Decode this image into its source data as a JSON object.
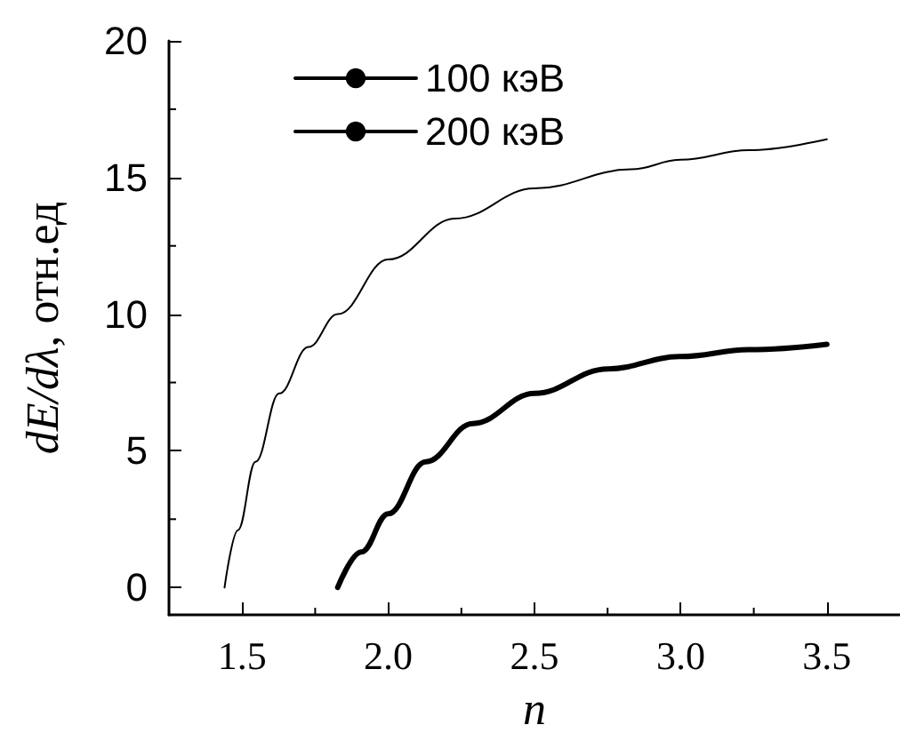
{
  "chart_data": {
    "type": "line",
    "xlabel": "n",
    "ylabel": "dE/dλ, отн.ед",
    "xlim": [
      1.25,
      3.75
    ],
    "xticks": [
      1.5,
      {
        "value": 2,
        "label": "2.0"
      },
      2.5,
      {
        "value": 3,
        "label": "3.0"
      },
      3.5
    ],
    "ylim": [
      -1,
      20
    ],
    "yticks": [
      0,
      5,
      10,
      15,
      20
    ],
    "grid": false,
    "legend": "top left",
    "marker": "none",
    "line_style": "solid",
    "series": [
      {
        "name": "100 кэВ",
        "color": "#000000",
        "x": [
          1.827,
          1.908,
          2.0,
          2.128,
          2.289,
          2.5,
          2.751,
          3.0,
          3.233,
          3.5
        ],
        "values": [
          0,
          1.3,
          2.7,
          4.6,
          6.0,
          7.1,
          8.0,
          8.45,
          8.7,
          8.9
        ]
      },
      {
        "name": "200 кэВ",
        "color": "#000000",
        "x": [
          1.44,
          1.486,
          1.546,
          1.627,
          1.727,
          1.827,
          2.0,
          2.229,
          2.5,
          2.831,
          3.0,
          3.233,
          3.5
        ],
        "values": [
          0,
          2.1,
          4.6,
          7.1,
          8.8,
          10.0,
          12.0,
          13.5,
          14.6,
          15.3,
          15.65,
          16.0,
          16.4
        ]
      }
    ]
  }
}
